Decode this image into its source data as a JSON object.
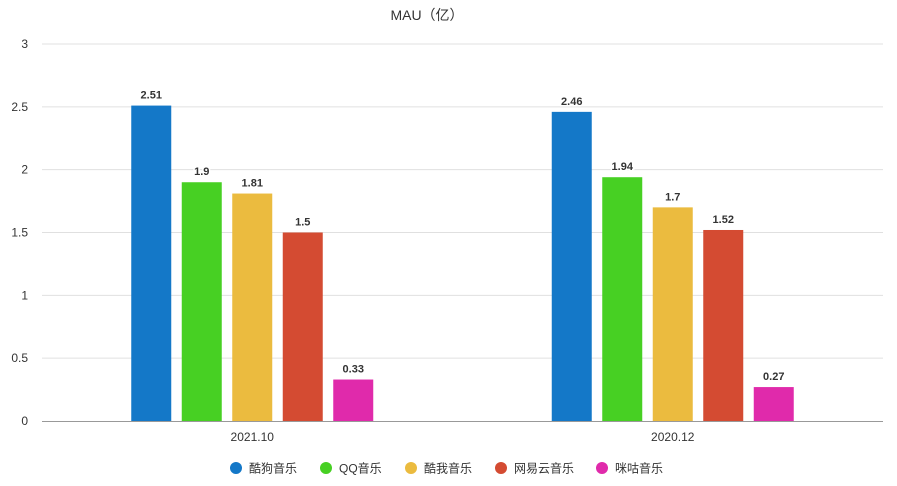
{
  "chart_data": {
    "type": "bar",
    "title": "MAU（亿）",
    "categories": [
      "2021.10",
      "2020.12"
    ],
    "series": [
      {
        "name": "酷狗音乐",
        "color": "#1478C8",
        "values": [
          2.51,
          2.46
        ],
        "labels": [
          "2.51",
          "2.46"
        ]
      },
      {
        "name": "QQ音乐",
        "color": "#47D023",
        "values": [
          1.9,
          1.94
        ],
        "labels": [
          "1.9",
          "1.94"
        ]
      },
      {
        "name": "酷我音乐",
        "color": "#EBBB3F",
        "values": [
          1.81,
          1.7
        ],
        "labels": [
          "1.81",
          "1.7"
        ]
      },
      {
        "name": "网易云音乐",
        "color": "#D44B32",
        "values": [
          1.5,
          1.52
        ],
        "labels": [
          "1.5",
          "1.52"
        ]
      },
      {
        "name": "咪咕音乐",
        "color": "#E02AAB",
        "values": [
          0.33,
          0.27
        ],
        "labels": [
          "0.33",
          "0.27"
        ]
      }
    ],
    "ylim": [
      0,
      3
    ],
    "yticks": [
      "0",
      "0.5",
      "1",
      "1.5",
      "2",
      "2.5",
      "3"
    ],
    "xlabel": "",
    "ylabel": "",
    "grid": true,
    "legend": "bottom"
  }
}
